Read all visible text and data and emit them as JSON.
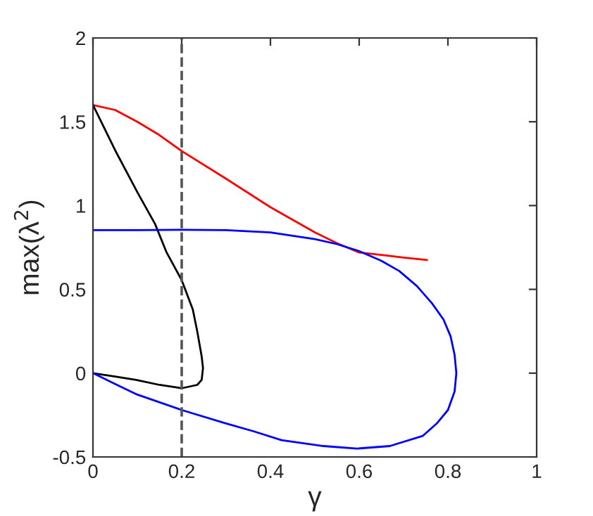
{
  "chart_data": {
    "type": "line",
    "xlabel": "γ",
    "ylabel": "max(λ$^{2}$)",
    "xlim": [
      0,
      1
    ],
    "ylim": [
      -0.5,
      2
    ],
    "xticks": [
      0,
      0.2,
      0.4,
      0.6,
      0.8,
      1
    ],
    "yticks": [
      -0.5,
      0,
      0.5,
      1,
      1.5,
      2
    ],
    "grid": false,
    "legend": false,
    "marker": "none",
    "line_style": "solid",
    "ref_lines": [
      {
        "axis": "x",
        "value": 0.2,
        "color": "#555555",
        "line_style": "dashed"
      }
    ],
    "series": [
      {
        "color": "#ff0000",
        "x": [
          0,
          0.05,
          0.1,
          0.15,
          0.2,
          0.3,
          0.4,
          0.5,
          0.55,
          0.6,
          0.65,
          0.7,
          0.753
        ],
        "values": [
          1.6,
          1.57,
          1.5,
          1.42,
          1.325,
          1.16,
          0.99,
          0.84,
          0.775,
          0.72,
          0.705,
          0.69,
          0.675
        ]
      },
      {
        "color": "#000000",
        "x": [
          0,
          0.05,
          0.1,
          0.14,
          0.166,
          0.2,
          0.225,
          0.235,
          0.245,
          0.248,
          0.245,
          0.235,
          0.2,
          0.15,
          0.097,
          0.05,
          0
        ],
        "values": [
          1.6,
          1.33,
          1.08,
          0.89,
          0.72,
          0.555,
          0.38,
          0.25,
          0.1,
          0.03,
          -0.04,
          -0.07,
          -0.09,
          -0.07,
          -0.04,
          -0.02,
          0
        ]
      },
      {
        "color": "#0000ff",
        "x": [
          0,
          0.1,
          0.2,
          0.3,
          0.4,
          0.5,
          0.55,
          0.6,
          0.65,
          0.69,
          0.73,
          0.764,
          0.79,
          0.806,
          0.815,
          0.819,
          0.815,
          0.8,
          0.775,
          0.743,
          0.669,
          0.595,
          0.52,
          0.425,
          0.362,
          0.3,
          0.2,
          0.097,
          0.05,
          0
        ],
        "values": [
          0.853,
          0.853,
          0.855,
          0.853,
          0.84,
          0.8,
          0.77,
          0.728,
          0.67,
          0.61,
          0.52,
          0.417,
          0.32,
          0.22,
          0.11,
          0,
          -0.11,
          -0.22,
          -0.3,
          -0.375,
          -0.435,
          -0.45,
          -0.435,
          -0.4,
          -0.347,
          -0.3,
          -0.22,
          -0.125,
          -0.065,
          0
        ]
      }
    ]
  }
}
